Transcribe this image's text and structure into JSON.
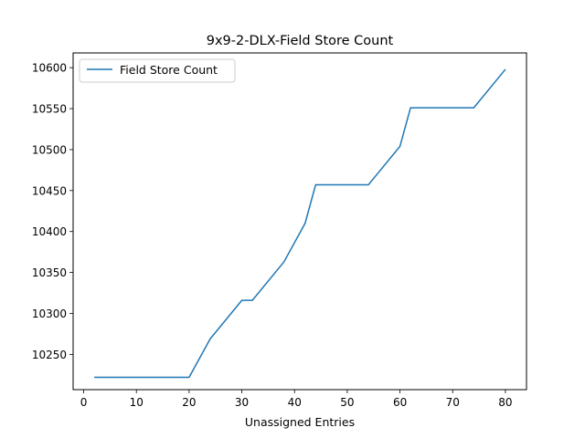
{
  "chart_data": {
    "type": "line",
    "title": "9x9-2-DLX-Field Store Count",
    "xlabel": "Unassigned Entries",
    "ylabel": "",
    "xlim": [
      -2,
      84
    ],
    "ylim": [
      10207,
      10618
    ],
    "xticks": [
      0,
      10,
      20,
      30,
      40,
      50,
      60,
      70,
      80
    ],
    "yticks": [
      10250,
      10300,
      10350,
      10400,
      10450,
      10500,
      10550,
      10600
    ],
    "grid": false,
    "legend": {
      "placement": "upper-left"
    },
    "series": [
      {
        "name": "Field Store Count",
        "color": "#1f77b4",
        "x": [
          2,
          20,
          24,
          30,
          32,
          38,
          42,
          44,
          54,
          60,
          62,
          74,
          80
        ],
        "y": [
          10222,
          10222,
          10269,
          10316,
          10316,
          10363,
          10410,
          10457,
          10457,
          10504,
          10551,
          10551,
          10598
        ]
      }
    ]
  }
}
